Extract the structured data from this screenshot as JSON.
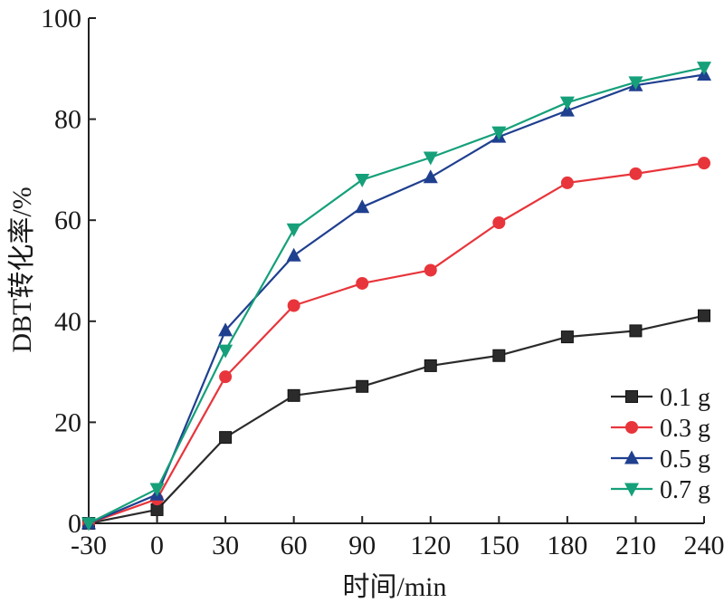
{
  "chart_data": {
    "type": "line",
    "xlabel": "时间/min",
    "ylabel": "DBT转化率/%",
    "x": [
      -30,
      0,
      30,
      60,
      90,
      120,
      150,
      180,
      210,
      240
    ],
    "xticks": [
      "-30",
      "0",
      "30",
      "60",
      "90",
      "120",
      "150",
      "180",
      "210",
      "240"
    ],
    "xlim": [
      -30,
      240
    ],
    "yticks": [
      "0",
      "20",
      "40",
      "60",
      "80",
      "100"
    ],
    "ylim": [
      0,
      100
    ],
    "grid": false,
    "legend_position": "bottom-right",
    "series": [
      {
        "name": "0.1 g",
        "color": "#2b2b2b",
        "marker": "square",
        "values": [
          0,
          2.7,
          17,
          25.3,
          27.1,
          31.2,
          33.2,
          36.9,
          38.1,
          41.1
        ]
      },
      {
        "name": "0.3 g",
        "color": "#e8353b",
        "marker": "circle",
        "values": [
          0,
          4.8,
          29,
          43.1,
          47.5,
          50.1,
          59.5,
          67.4,
          69.2,
          71.3
        ]
      },
      {
        "name": "0.5 g",
        "color": "#1f3f8f",
        "marker": "triangle-up",
        "values": [
          0,
          5.7,
          38.2,
          53,
          62.6,
          68.5,
          76.5,
          81.7,
          86.7,
          88.8
        ]
      },
      {
        "name": "0.7 g",
        "color": "#15a07a",
        "marker": "triangle-down",
        "values": [
          0,
          6.8,
          34.2,
          58.2,
          68,
          72.4,
          77.4,
          83.3,
          87.3,
          90.2
        ]
      }
    ]
  }
}
